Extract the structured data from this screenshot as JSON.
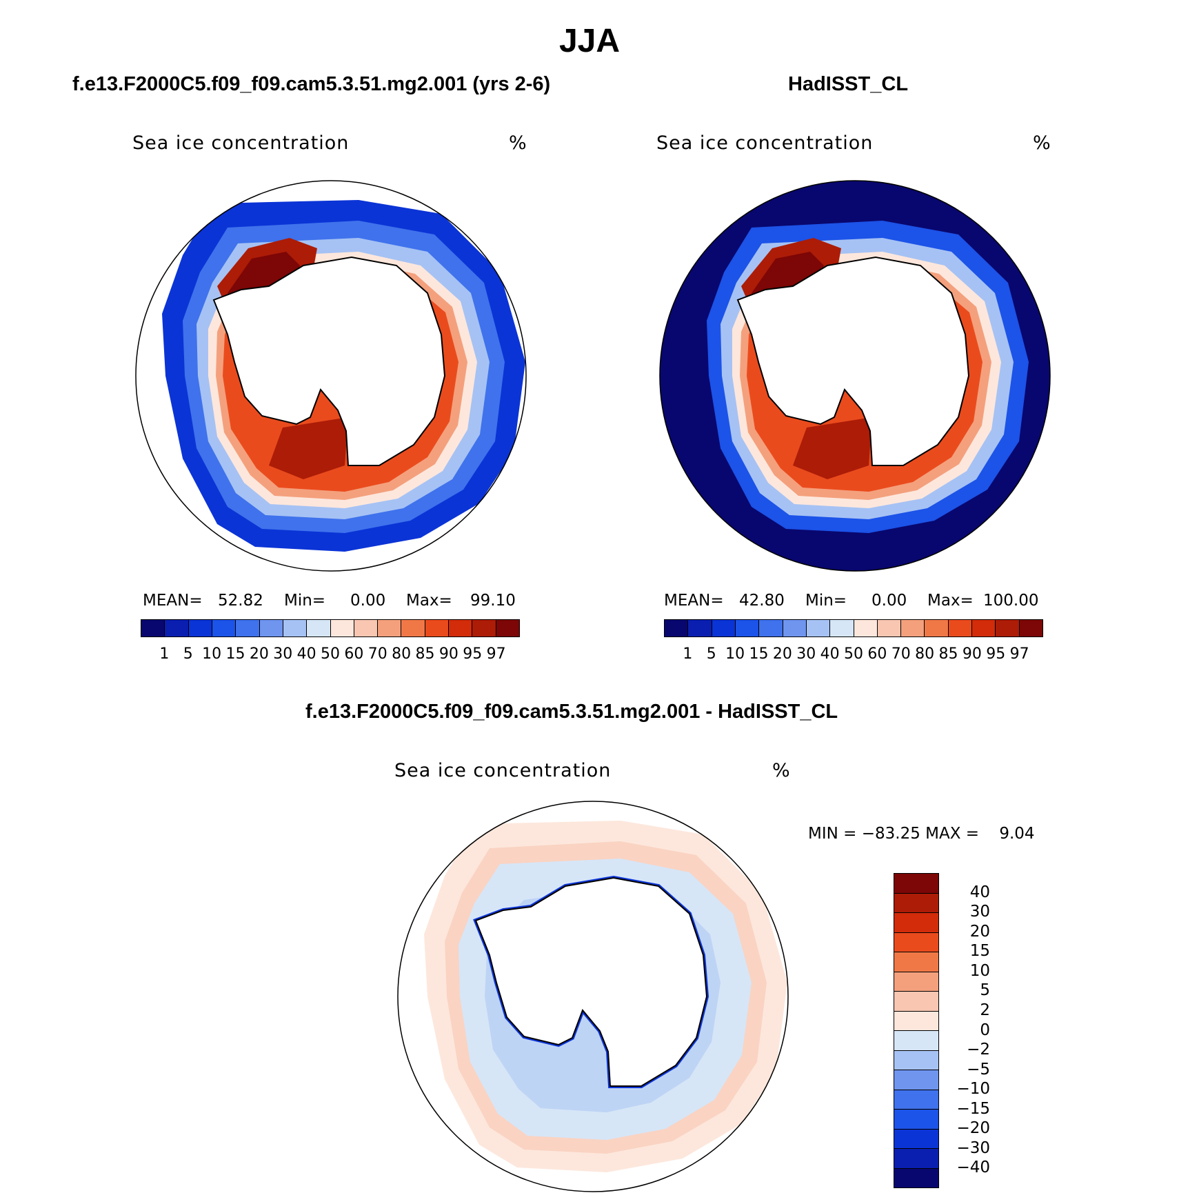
{
  "figure": {
    "title": "JJA"
  },
  "panels": [
    {
      "title": "f.e13.F2000C5.f09_f09.cam5.3.51.mg2.001 (yrs 2-6)",
      "variable": "Sea ice concentration",
      "units": "%",
      "mean_label": "MEAN=",
      "mean": "52.82",
      "min_label": "Min=",
      "min": "0.00",
      "max_label": "Max=",
      "max": "99.10"
    },
    {
      "title": "HadISST_CL",
      "variable": "Sea ice concentration",
      "units": "%",
      "mean_label": "MEAN=",
      "mean": "42.80",
      "min_label": "Min=",
      "min": "0.00",
      "max_label": "Max=",
      "max": "100.00"
    }
  ],
  "diff_panel": {
    "title": "f.e13.F2000C5.f09_f09.cam5.3.51.mg2.001 - HadISST_CL",
    "variable": "Sea ice concentration",
    "units": "%",
    "minmax": "MIN = −83.25 MAX =    9.04"
  },
  "colorbar_levels": [
    "1",
    "5",
    "10",
    "15",
    "20",
    "30",
    "40",
    "50",
    "60",
    "70",
    "80",
    "85",
    "90",
    "95",
    "97"
  ],
  "colorbar_colors": [
    "#08076f",
    "#0a1fb0",
    "#0b34d6",
    "#1c53e8",
    "#3f72ec",
    "#6f95ef",
    "#a6c2f4",
    "#d6e6f7",
    "#fde7dc",
    "#f8c6b1",
    "#f4a07d",
    "#f07847",
    "#ea4b1d",
    "#d22c0b",
    "#ac1c07",
    "#7d0606"
  ],
  "diff_levels": [
    "40",
    "30",
    "20",
    "15",
    "10",
    "5",
    "2",
    "0",
    "−2",
    "−5",
    "−10",
    "−15",
    "−20",
    "−30",
    "−40"
  ],
  "diff_colors": [
    "#7d0606",
    "#ac1c07",
    "#d22c0b",
    "#ea4b1d",
    "#f07847",
    "#f4a07d",
    "#f8c6b1",
    "#fde7dc",
    "#d6e6f7",
    "#a6c2f4",
    "#6f95ef",
    "#3f72ec",
    "#1c53e8",
    "#0b34d6",
    "#0a1fb0",
    "#08076f"
  ]
}
